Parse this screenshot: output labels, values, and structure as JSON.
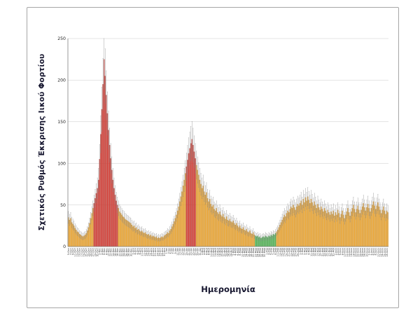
{
  "chart_data": {
    "type": "bar",
    "title": "",
    "ylabel": "Σχετικός Ρυθμός Έκκρισης Ιικού Φορτίου",
    "xlabel": "Ημερομηνία",
    "ylim": [
      0,
      250
    ],
    "y_ticks": [
      0,
      50,
      100,
      150,
      200,
      250
    ],
    "grid": true,
    "legend": false,
    "x_axis": {
      "label_every_days": 2,
      "months": [
        {
          "name": "Οκτ",
          "from": 5,
          "to": 31
        },
        {
          "name": "Νοε",
          "from": 1,
          "to": 30
        },
        {
          "name": "Δεκ",
          "from": 1,
          "to": 31
        },
        {
          "name": "Ιαν",
          "from": 1,
          "to": 31
        },
        {
          "name": "Φεβ",
          "from": 1,
          "to": 28
        },
        {
          "name": "Μαρ",
          "from": 1,
          "to": 31
        },
        {
          "name": "Απρ",
          "from": 1,
          "to": 30
        },
        {
          "name": "Μαϊ",
          "from": 1,
          "to": 31
        },
        {
          "name": "Ιουν",
          "from": 1,
          "to": 30
        },
        {
          "name": "Ιουλ",
          "from": 1,
          "to": 19
        }
      ]
    },
    "colors": {
      "default": "#F0AC3C",
      "high": "#D9453D",
      "low": "#5CB85C"
    },
    "colors_stroke": {
      "default": "#B97F1F",
      "high": "#9E2F28",
      "low": "#3C8E46"
    },
    "color_segments": [
      {
        "from_index": 23,
        "to_index": 44,
        "color": "high"
      },
      {
        "from_index": 106,
        "to_index": 114,
        "color": "high"
      },
      {
        "from_index": 168,
        "to_index": 186,
        "color": "low"
      }
    ],
    "error_bars": {
      "base": 2,
      "fraction": 0.15,
      "color": "#7F7F7F"
    },
    "values": [
      35,
      32,
      34,
      29,
      27,
      25,
      22,
      20,
      18,
      17,
      15,
      14,
      13,
      12,
      13,
      14,
      16,
      19,
      23,
      28,
      34,
      40,
      46,
      52,
      58,
      64,
      70,
      80,
      105,
      135,
      165,
      195,
      225,
      205,
      182,
      160,
      140,
      122,
      106,
      92,
      80,
      70,
      62,
      55,
      50,
      46,
      42,
      40,
      38,
      36,
      35,
      33,
      32,
      31,
      30,
      29,
      28,
      26,
      24,
      25,
      22,
      23,
      20,
      21,
      19,
      18,
      19,
      17,
      16,
      17,
      15,
      14,
      15,
      13,
      14,
      12,
      13,
      12,
      11,
      12,
      10,
      11,
      10,
      11,
      12,
      11,
      13,
      14,
      15,
      17,
      16,
      19,
      21,
      24,
      27,
      30,
      34,
      38,
      43,
      48,
      54,
      60,
      66,
      73,
      80,
      88,
      96,
      104,
      112,
      118,
      124,
      129,
      122,
      114,
      106,
      98,
      92,
      86,
      80,
      75,
      70,
      73,
      66,
      62,
      65,
      58,
      54,
      57,
      51,
      48,
      50,
      45,
      43,
      46,
      41,
      39,
      42,
      38,
      36,
      39,
      35,
      33,
      36,
      32,
      31,
      33,
      30,
      29,
      31,
      28,
      26,
      28,
      25,
      23,
      25,
      22,
      21,
      23,
      20,
      19,
      21,
      18,
      17,
      19,
      16,
      15,
      17,
      14,
      13,
      12,
      13,
      11,
      12,
      10,
      11,
      12,
      11,
      13,
      12,
      11,
      13,
      12,
      14,
      13,
      15,
      14,
      16,
      18,
      20,
      23,
      26,
      29,
      32,
      35,
      38,
      36,
      40,
      43,
      41,
      45,
      48,
      46,
      50,
      47,
      44,
      48,
      51,
      49,
      52,
      55,
      50,
      57,
      53,
      59,
      55,
      60,
      56,
      52,
      57,
      53,
      49,
      54,
      50,
      46,
      51,
      47,
      44,
      48,
      45,
      42,
      46,
      43,
      40,
      44,
      41,
      38,
      42,
      39,
      43,
      37,
      41,
      38,
      44,
      40,
      35,
      39,
      43,
      38,
      34,
      38,
      42,
      46,
      41,
      37,
      42,
      46,
      50,
      45,
      41,
      45,
      49,
      44,
      40,
      44,
      48,
      52,
      47,
      43,
      47,
      51,
      46,
      42,
      46,
      50,
      54,
      49,
      45,
      49,
      53,
      48,
      44,
      40,
      44,
      48,
      43,
      39,
      43,
      41
    ]
  }
}
